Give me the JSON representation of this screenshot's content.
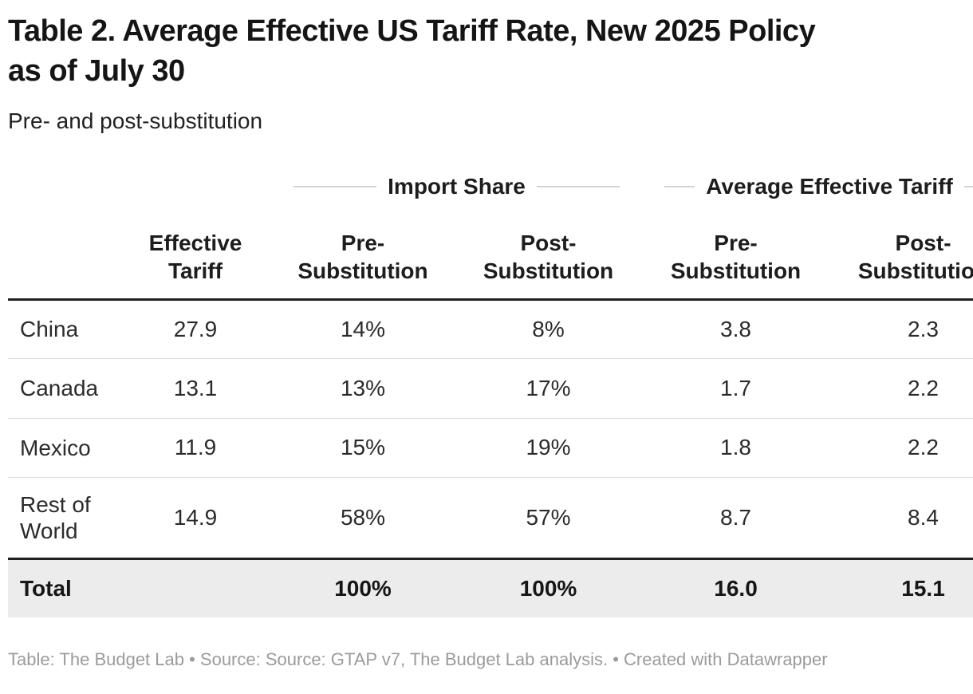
{
  "header": {
    "title": "Table 2. Average Effective US Tariff Rate, New 2025 Policy\nas of July 30",
    "subtitle": "Pre- and post-substitution"
  },
  "chart_data": {
    "type": "table",
    "title": "Table 2. Average Effective US Tariff Rate, New 2025 Policy as of July 30",
    "subtitle": "Pre- and post-substitution",
    "group_headers": {
      "import_share": "Import Share",
      "average_effective_tariff": "Average Effective Tariff"
    },
    "columns": {
      "label": "",
      "effective_tariff": "Effective\nTariff",
      "import_share_pre": "Pre-\nSubstitution",
      "import_share_post": "Post-\nSubstitution",
      "aet_pre": "Pre-\nSubstitution",
      "aet_post": "Post-\nSubstitution"
    },
    "rows": [
      {
        "label": "China",
        "values": [
          "27.9",
          "14%",
          "8%",
          "3.8",
          "2.3"
        ]
      },
      {
        "label": "Canada",
        "values": [
          "13.1",
          "13%",
          "17%",
          "1.7",
          "2.2"
        ]
      },
      {
        "label": "Mexico",
        "values": [
          "11.9",
          "15%",
          "19%",
          "1.8",
          "2.2"
        ]
      },
      {
        "label": "Rest of World",
        "values": [
          "14.9",
          "58%",
          "57%",
          "8.7",
          "8.4"
        ]
      },
      {
        "label": "Total",
        "values": [
          "",
          "100%",
          "100%",
          "16.0",
          "15.1"
        ]
      }
    ],
    "layout_hints": {
      "total_row_highlighted": true,
      "numeric_alignment": "center",
      "last_column_clipped_at_right_edge": true
    }
  },
  "footer": {
    "text": "Table: The Budget Lab • Source: Source: GTAP v7, The Budget Lab analysis. • Created with Datawrapper"
  },
  "colors": {
    "title": "#151515",
    "body_text": "#2b2b2b",
    "header_text": "#1d1d1d",
    "thick_border": "#1f1f1f",
    "row_divider": "#dddddd",
    "group_header_line": "#d4d4d4",
    "total_row_background": "#ececec",
    "footer_text": "#9b9b9b",
    "background": "#ffffff"
  }
}
